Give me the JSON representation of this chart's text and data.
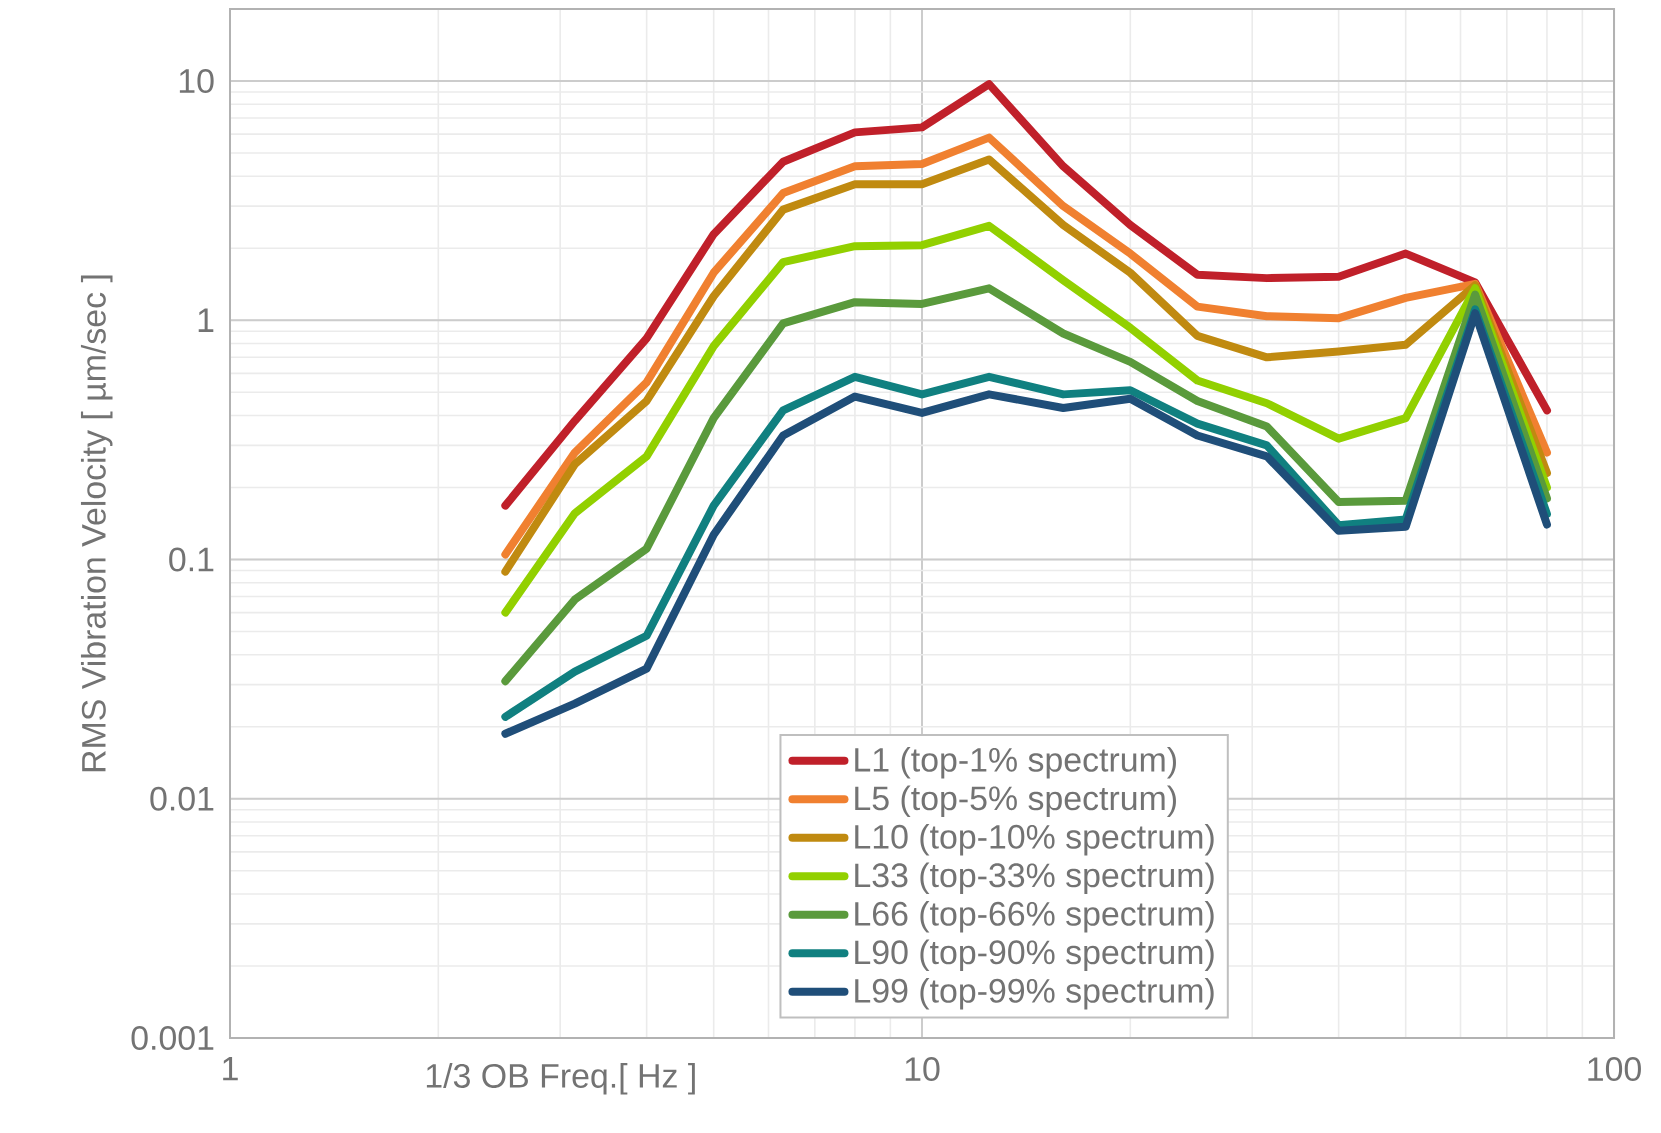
{
  "chart_data": {
    "type": "line",
    "xlabel": "1/3 OB Freq.[ Hz ]",
    "ylabel": "RMS Vibration Velocity [ µm/sec ]",
    "x": [
      2.5,
      3.15,
      4,
      5,
      6.3,
      8,
      10,
      12.5,
      16,
      20,
      25,
      31.5,
      40,
      50,
      63,
      80
    ],
    "series": [
      {
        "name": "L1 (top-1% spectrum)",
        "color": "#c0202a",
        "values": [
          0.168,
          0.38,
          0.84,
          2.29,
          4.6,
          6.1,
          6.4,
          9.7,
          4.4,
          2.5,
          1.55,
          1.5,
          1.52,
          1.9,
          1.44,
          0.42
        ]
      },
      {
        "name": "L5 (top-5% spectrum)",
        "color": "#f08030",
        "values": [
          0.105,
          0.28,
          0.55,
          1.58,
          3.4,
          4.4,
          4.5,
          5.8,
          3.0,
          1.9,
          1.14,
          1.04,
          1.02,
          1.24,
          1.42,
          0.28
        ]
      },
      {
        "name": "L10 (top-10% spectrum)",
        "color": "#c08a10",
        "values": [
          0.089,
          0.25,
          0.46,
          1.26,
          2.9,
          3.7,
          3.7,
          4.7,
          2.5,
          1.58,
          0.86,
          0.7,
          0.74,
          0.79,
          1.4,
          0.23
        ]
      },
      {
        "name": "L33 (top-33% spectrum)",
        "color": "#92d000",
        "values": [
          0.06,
          0.156,
          0.27,
          0.78,
          1.75,
          2.04,
          2.06,
          2.48,
          1.47,
          0.93,
          0.56,
          0.45,
          0.32,
          0.39,
          1.36,
          0.2
        ]
      },
      {
        "name": "L66 (top-66% spectrum)",
        "color": "#5a9a3c",
        "values": [
          0.031,
          0.068,
          0.111,
          0.39,
          0.97,
          1.19,
          1.17,
          1.36,
          0.88,
          0.67,
          0.46,
          0.36,
          0.174,
          0.176,
          1.28,
          0.18
        ]
      },
      {
        "name": "L90 (top-90% spectrum)",
        "color": "#108080",
        "values": [
          0.022,
          0.034,
          0.048,
          0.168,
          0.42,
          0.58,
          0.49,
          0.58,
          0.49,
          0.51,
          0.37,
          0.3,
          0.139,
          0.147,
          1.11,
          0.155
        ]
      },
      {
        "name": "L99 (top-99% spectrum)",
        "color": "#1f4e79",
        "values": [
          0.0187,
          0.025,
          0.035,
          0.127,
          0.33,
          0.48,
          0.41,
          0.49,
          0.43,
          0.47,
          0.33,
          0.27,
          0.132,
          0.137,
          1.07,
          0.14
        ]
      }
    ],
    "log": "xy",
    "xlim": [
      1,
      100
    ],
    "ylim": [
      0.001,
      20
    ],
    "xticks": [
      1,
      10,
      100
    ],
    "yticks": [
      0.001,
      0.01,
      0.1,
      1,
      10
    ],
    "grid": true,
    "legend": "bottom"
  }
}
